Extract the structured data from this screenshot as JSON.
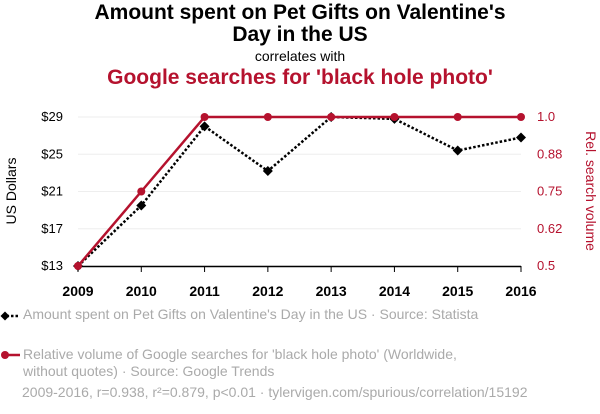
{
  "chart_data": {
    "type": "line",
    "title": "Amount spent on Pet Gifts on Valentine's Day in the US",
    "subtitle": "correlates with",
    "title2": "Google searches for 'black hole photo'",
    "x": [
      "2009",
      "2010",
      "2011",
      "2012",
      "2013",
      "2014",
      "2015",
      "2016"
    ],
    "series": [
      {
        "name": "Amount spent on Pet Gifts on Valentine's Day in the US",
        "axis": "left",
        "color": "#000000",
        "style": "dotted",
        "marker": "diamond",
        "values": [
          13,
          19.5,
          28,
          23.2,
          29,
          28.8,
          25.4,
          26.8
        ]
      },
      {
        "name": "Relative volume of Google searches for 'black hole photo' (Worldwide, without quotes)",
        "axis": "right",
        "color": "#b5122e",
        "style": "solid",
        "marker": "circle",
        "values": [
          0.5,
          0.75,
          1.0,
          1.0,
          1.0,
          1.0,
          1.0,
          1.0
        ]
      }
    ],
    "ylabel": "US Dollars",
    "ylabel_right": "Rel. search volume",
    "ylim": [
      13,
      29
    ],
    "ylim_right": [
      0.5,
      1.0
    ],
    "yticks": [
      "$13",
      "$17",
      "$21",
      "$25",
      "$29"
    ],
    "yticks_right": [
      "0.5",
      "0.62",
      "0.75",
      "0.88",
      "1.0"
    ],
    "grid": true
  },
  "legend": [
    {
      "text": "Amount spent on Pet Gifts on Valentine's Day in the US · Source: Statista"
    },
    {
      "text": "Relative volume of Google searches for 'black hole photo' (Worldwide, without quotes) · Source: Google Trends"
    }
  ],
  "footer": "2009-2016, r=0.938, r²=0.879, p<0.01 · tylervigen.com/spurious/correlation/15192"
}
